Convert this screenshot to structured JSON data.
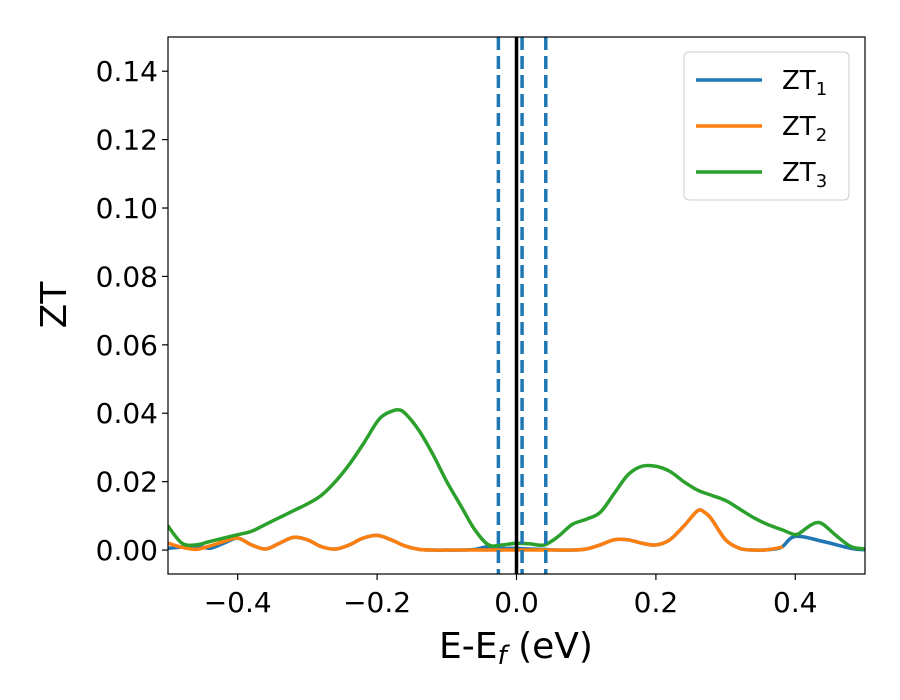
{
  "chart_data": {
    "type": "line",
    "xlabel": "E-E",
    "xlabel_sub": "f",
    "xlabel_unit": "(eV)",
    "ylabel": "ZT",
    "xlim": [
      -0.5,
      0.5
    ],
    "ylim": [
      -0.007,
      0.15
    ],
    "xticks": [
      -0.4,
      -0.2,
      0.0,
      0.2,
      0.4
    ],
    "xtick_labels": [
      "−0.4",
      "−0.2",
      "0.0",
      "0.2",
      "0.4"
    ],
    "yticks": [
      0.0,
      0.02,
      0.04,
      0.06,
      0.08,
      0.1,
      0.12,
      0.14
    ],
    "ytick_labels": [
      "0.00",
      "0.02",
      "0.04",
      "0.06",
      "0.08",
      "0.10",
      "0.12",
      "0.14"
    ],
    "legend_position": "top-right",
    "grid": false,
    "vertical_lines": [
      {
        "x": -0.026,
        "style": "dashed",
        "color": "#1f77b4"
      },
      {
        "x": 0.008,
        "style": "dashed",
        "color": "#1f77b4"
      },
      {
        "x": 0.042,
        "style": "dashed",
        "color": "#1f77b4"
      },
      {
        "x": 0.0,
        "style": "solid",
        "color": "#000000"
      }
    ],
    "series": [
      {
        "name": "ZT",
        "sub": "1",
        "color": "#1f77b4",
        "x": [
          -0.5,
          -0.46,
          -0.44,
          -0.42,
          -0.4,
          -0.38,
          -0.36,
          -0.34,
          -0.32,
          -0.3,
          -0.28,
          -0.26,
          -0.24,
          -0.22,
          -0.2,
          -0.18,
          -0.16,
          -0.14,
          -0.12,
          -0.1,
          -0.08,
          -0.06,
          -0.04,
          -0.02,
          0.0,
          0.02,
          0.04,
          0.06,
          0.08,
          0.1,
          0.12,
          0.14,
          0.16,
          0.18,
          0.2,
          0.22,
          0.24,
          0.26,
          0.27,
          0.28,
          0.3,
          0.32,
          0.34,
          0.36,
          0.38,
          0.4,
          0.44,
          0.48,
          0.5
        ],
        "y": [
          0.0005,
          0.0012,
          0.0005,
          0.002,
          0.0035,
          0.0015,
          0.0003,
          0.002,
          0.0037,
          0.003,
          0.001,
          0.0003,
          0.0015,
          0.0035,
          0.0043,
          0.003,
          0.0012,
          0.0002,
          0.0,
          0.0,
          0.0,
          0.0002,
          0.001,
          0.0005,
          0.0005,
          0.0003,
          0.0002,
          0.0,
          0.0,
          0.0003,
          0.0015,
          0.003,
          0.003,
          0.002,
          0.0015,
          0.003,
          0.007,
          0.0115,
          0.011,
          0.009,
          0.003,
          0.0005,
          0.0,
          0.0001,
          0.0008,
          0.004,
          0.0025,
          0.0005,
          0.0001
        ]
      },
      {
        "name": "ZT",
        "sub": "2",
        "color": "#ff7f0e",
        "x": [
          -0.5,
          -0.48,
          -0.46,
          -0.44,
          -0.42,
          -0.4,
          -0.38,
          -0.36,
          -0.34,
          -0.32,
          -0.3,
          -0.28,
          -0.26,
          -0.24,
          -0.22,
          -0.2,
          -0.18,
          -0.16,
          -0.14,
          -0.12,
          -0.1,
          -0.08,
          -0.06,
          -0.04,
          -0.02,
          0.0,
          0.02,
          0.04,
          0.06,
          0.08,
          0.1,
          0.12,
          0.14,
          0.16,
          0.18,
          0.2,
          0.22,
          0.24,
          0.26,
          0.27,
          0.28,
          0.3,
          0.32,
          0.34,
          0.36,
          0.38
        ],
        "y": [
          0.002,
          0.0008,
          0.0002,
          0.0012,
          0.0025,
          0.0035,
          0.0015,
          0.0003,
          0.002,
          0.0037,
          0.003,
          0.001,
          0.0003,
          0.0015,
          0.0035,
          0.0043,
          0.003,
          0.0012,
          0.0002,
          0.0,
          0.0,
          0.0,
          0.0,
          0.0,
          0.0,
          0.0,
          0.0,
          0.0,
          0.0,
          0.0,
          0.0003,
          0.0015,
          0.003,
          0.003,
          0.002,
          0.0015,
          0.003,
          0.007,
          0.0115,
          0.011,
          0.009,
          0.003,
          0.0005,
          0.0,
          0.0001,
          0.0008
        ]
      },
      {
        "name": "ZT",
        "sub": "3",
        "color": "#2ca02c",
        "x": [
          -0.5,
          -0.48,
          -0.46,
          -0.44,
          -0.42,
          -0.4,
          -0.38,
          -0.36,
          -0.34,
          -0.32,
          -0.3,
          -0.28,
          -0.26,
          -0.24,
          -0.22,
          -0.2,
          -0.19,
          -0.18,
          -0.17,
          -0.16,
          -0.14,
          -0.12,
          -0.1,
          -0.08,
          -0.06,
          -0.04,
          -0.02,
          0.0,
          0.02,
          0.04,
          0.06,
          0.08,
          0.1,
          0.12,
          0.14,
          0.16,
          0.18,
          0.2,
          0.22,
          0.24,
          0.26,
          0.28,
          0.3,
          0.32,
          0.34,
          0.36,
          0.38,
          0.4,
          0.41,
          0.42,
          0.43,
          0.44,
          0.46,
          0.48,
          0.5
        ],
        "y": [
          0.007,
          0.002,
          0.0015,
          0.0025,
          0.0035,
          0.0045,
          0.0055,
          0.0075,
          0.0095,
          0.0115,
          0.0135,
          0.016,
          0.02,
          0.025,
          0.031,
          0.0375,
          0.0395,
          0.0405,
          0.041,
          0.04,
          0.035,
          0.028,
          0.02,
          0.013,
          0.006,
          0.0015,
          0.0015,
          0.002,
          0.0018,
          0.0015,
          0.004,
          0.0075,
          0.009,
          0.011,
          0.0165,
          0.022,
          0.0245,
          0.0245,
          0.023,
          0.02,
          0.0175,
          0.016,
          0.0145,
          0.012,
          0.0095,
          0.0075,
          0.006,
          0.0045,
          0.0055,
          0.007,
          0.008,
          0.0075,
          0.004,
          0.001,
          0.0003
        ]
      }
    ]
  }
}
